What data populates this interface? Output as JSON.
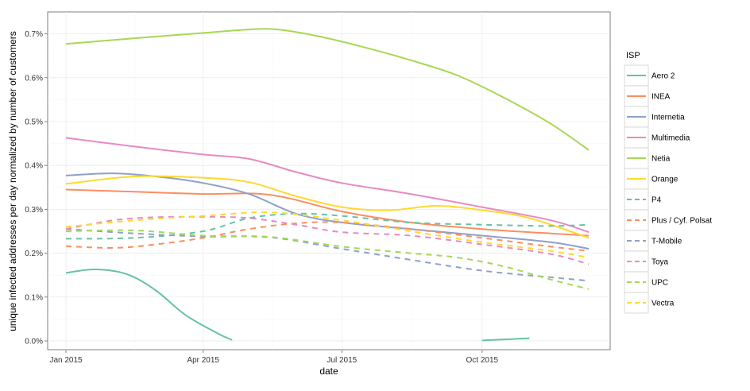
{
  "chart_data": {
    "type": "line",
    "xlabel": "date",
    "ylabel": "unique infected addresses per day normalized by number of customers",
    "x_ticks": [
      "2015-01-01",
      "2015-04-01",
      "2015-07-01",
      "2015-10-01"
    ],
    "x_tick_labels": [
      "Jan 2015",
      "Apr 2015",
      "Jul 2015",
      "Oct 2015"
    ],
    "xlim": [
      "2014-12-20",
      "2015-12-24"
    ],
    "y_ticks": [
      0.0,
      0.1,
      0.2,
      0.3,
      0.4,
      0.5,
      0.6,
      0.7
    ],
    "y_tick_labels": [
      "0.0%",
      "0.1%",
      "0.2%",
      "0.3%",
      "0.4%",
      "0.5%",
      "0.6%",
      "0.7%"
    ],
    "ylim": [
      -0.02,
      0.75
    ],
    "y_unit": "%",
    "grid": true,
    "legend": {
      "title": "ISP",
      "position": "right"
    },
    "series": [
      {
        "name": "Aero 2",
        "color": "#66c2a5",
        "dash": "solid",
        "segments": [
          {
            "x": [
              "2015-01-01",
              "2015-01-20",
              "2015-02-10",
              "2015-03-01",
              "2015-03-20",
              "2015-04-10",
              "2015-04-20"
            ],
            "y": [
              0.155,
              0.163,
              0.152,
              0.115,
              0.06,
              0.018,
              0.002
            ]
          },
          {
            "x": [
              "2015-10-01",
              "2015-11-01"
            ],
            "y": [
              0.001,
              0.006
            ]
          }
        ]
      },
      {
        "name": "INEA",
        "color": "#fc8d62",
        "dash": "solid",
        "segments": [
          {
            "x": [
              "2015-01-01",
              "2015-02-15",
              "2015-04-01",
              "2015-05-15",
              "2015-07-01",
              "2015-08-15",
              "2015-10-01",
              "2015-11-15",
              "2015-12-10"
            ],
            "y": [
              0.345,
              0.34,
              0.335,
              0.333,
              0.295,
              0.27,
              0.255,
              0.245,
              0.24
            ]
          }
        ]
      },
      {
        "name": "Internetia",
        "color": "#8da0cb",
        "dash": "solid",
        "segments": [
          {
            "x": [
              "2015-01-01",
              "2015-02-01",
              "2015-03-01",
              "2015-04-01",
              "2015-05-01",
              "2015-06-01",
              "2015-07-01",
              "2015-08-15",
              "2015-10-01",
              "2015-11-15",
              "2015-12-10"
            ],
            "y": [
              0.377,
              0.382,
              0.375,
              0.36,
              0.335,
              0.29,
              0.27,
              0.255,
              0.24,
              0.225,
              0.21
            ]
          }
        ]
      },
      {
        "name": "Multimedia",
        "color": "#e78ac3",
        "dash": "solid",
        "segments": [
          {
            "x": [
              "2015-01-01",
              "2015-02-15",
              "2015-04-01",
              "2015-05-01",
              "2015-06-01",
              "2015-07-01",
              "2015-08-15",
              "2015-10-01",
              "2015-11-15",
              "2015-12-10"
            ],
            "y": [
              0.463,
              0.443,
              0.425,
              0.415,
              0.385,
              0.36,
              0.335,
              0.305,
              0.275,
              0.248
            ]
          }
        ]
      },
      {
        "name": "Netia",
        "color": "#a6d854",
        "dash": "solid",
        "segments": [
          {
            "x": [
              "2015-01-01",
              "2015-02-15",
              "2015-04-01",
              "2015-05-01",
              "2015-05-20",
              "2015-06-15",
              "2015-07-15",
              "2015-08-15",
              "2015-09-15",
              "2015-10-15",
              "2015-11-15",
              "2015-12-10"
            ],
            "y": [
              0.677,
              0.69,
              0.702,
              0.71,
              0.71,
              0.695,
              0.67,
              0.64,
              0.605,
              0.555,
              0.495,
              0.435
            ]
          }
        ]
      },
      {
        "name": "Orange",
        "color": "#ffd92f",
        "dash": "solid",
        "segments": [
          {
            "x": [
              "2015-01-01",
              "2015-02-15",
              "2015-04-01",
              "2015-05-01",
              "2015-06-01",
              "2015-07-01",
              "2015-08-01",
              "2015-09-01",
              "2015-10-01",
              "2015-11-01",
              "2015-12-10"
            ],
            "y": [
              0.358,
              0.375,
              0.372,
              0.362,
              0.33,
              0.305,
              0.298,
              0.308,
              0.298,
              0.28,
              0.235
            ]
          }
        ]
      },
      {
        "name": "P4",
        "color": "#66c2a5",
        "dash": "dashed",
        "segments": [
          {
            "x": [
              "2015-01-01",
              "2015-02-15",
              "2015-04-01",
              "2015-05-01",
              "2015-06-01",
              "2015-07-01",
              "2015-08-15",
              "2015-10-01",
              "2015-11-15",
              "2015-12-10"
            ],
            "y": [
              0.233,
              0.235,
              0.25,
              0.28,
              0.29,
              0.285,
              0.27,
              0.265,
              0.262,
              0.265
            ]
          }
        ]
      },
      {
        "name": "Plus / Cyf. Polsat",
        "color": "#fc8d62",
        "dash": "dashed",
        "segments": [
          {
            "x": [
              "2015-01-01",
              "2015-02-01",
              "2015-03-01",
              "2015-04-01",
              "2015-05-01",
              "2015-06-01",
              "2015-07-01",
              "2015-08-15",
              "2015-10-01",
              "2015-11-15",
              "2015-12-10"
            ],
            "y": [
              0.216,
              0.212,
              0.22,
              0.235,
              0.255,
              0.268,
              0.27,
              0.255,
              0.235,
              0.215,
              0.205
            ]
          }
        ]
      },
      {
        "name": "T-Mobile",
        "color": "#8da0cb",
        "dash": "dashed",
        "segments": [
          {
            "x": [
              "2015-01-01",
              "2015-02-15",
              "2015-04-01",
              "2015-05-15",
              "2015-07-01",
              "2015-08-15",
              "2015-10-01",
              "2015-11-15",
              "2015-12-10"
            ],
            "y": [
              0.255,
              0.245,
              0.238,
              0.236,
              0.21,
              0.185,
              0.16,
              0.145,
              0.137
            ]
          }
        ]
      },
      {
        "name": "Toya",
        "color": "#e78ac3",
        "dash": "dashed",
        "segments": [
          {
            "x": [
              "2015-01-01",
              "2015-02-01",
              "2015-03-01",
              "2015-04-01",
              "2015-05-01",
              "2015-06-01",
              "2015-07-01",
              "2015-08-15",
              "2015-10-01",
              "2015-11-15",
              "2015-12-10"
            ],
            "y": [
              0.255,
              0.275,
              0.282,
              0.283,
              0.28,
              0.265,
              0.248,
              0.24,
              0.22,
              0.198,
              0.175
            ]
          }
        ]
      },
      {
        "name": "UPC",
        "color": "#a6d854",
        "dash": "dashed",
        "segments": [
          {
            "x": [
              "2015-01-01",
              "2015-02-15",
              "2015-04-01",
              "2015-05-15",
              "2015-07-01",
              "2015-08-15",
              "2015-09-15",
              "2015-10-15",
              "2015-11-15",
              "2015-12-10"
            ],
            "y": [
              0.25,
              0.252,
              0.24,
              0.237,
              0.215,
              0.2,
              0.19,
              0.17,
              0.14,
              0.118
            ]
          }
        ]
      },
      {
        "name": "Vectra",
        "color": "#ffd92f",
        "dash": "dashed",
        "segments": [
          {
            "x": [
              "2015-01-01",
              "2015-02-15",
              "2015-04-01",
              "2015-05-15",
              "2015-07-01",
              "2015-08-15",
              "2015-10-01",
              "2015-11-15",
              "2015-12-10"
            ],
            "y": [
              0.26,
              0.275,
              0.285,
              0.293,
              0.275,
              0.25,
              0.225,
              0.205,
              0.19
            ]
          }
        ]
      }
    ]
  }
}
